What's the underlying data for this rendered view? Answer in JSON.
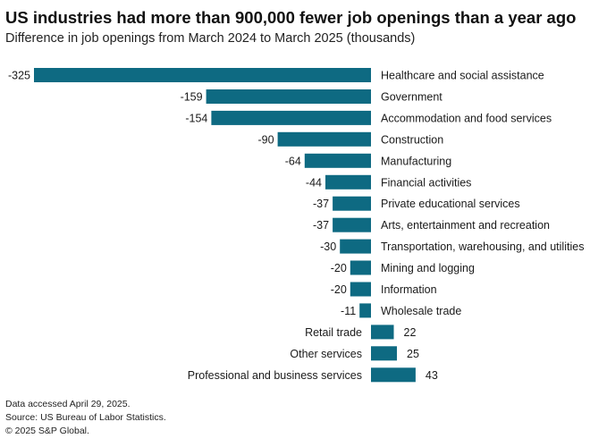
{
  "header": {
    "title": "US industries had more than 900,000 fewer job openings than a year ago",
    "subtitle": "Difference in job openings from March 2024 to March 2025 (thousands)"
  },
  "footer": {
    "line1": "Data accessed April 29, 2025.",
    "line2": "Source: US Bureau of Labor Statistics.",
    "line3": "© 2025 S&P Global."
  },
  "colors": {
    "bar": "#0e6a82"
  },
  "chart_data": {
    "type": "bar",
    "orientation": "horizontal",
    "title": "US industries had more than 900,000 fewer job openings than a year ago",
    "subtitle": "Difference in job openings from March 2024 to March 2025 (thousands)",
    "xlabel": "",
    "ylabel": "",
    "xlim": [
      -325,
      43
    ],
    "grid": false,
    "categories": [
      "Healthcare and social assistance",
      "Government",
      "Accommodation and food services",
      "Construction",
      "Manufacturing",
      "Financial activities",
      "Private educational services",
      "Arts, entertainment and recreation",
      "Transportation, warehousing, and utilities",
      "Mining and logging",
      "Information",
      "Wholesale trade",
      "Retail trade",
      "Other services",
      "Professional and business services"
    ],
    "values": [
      -325,
      -159,
      -154,
      -90,
      -64,
      -44,
      -37,
      -37,
      -30,
      -20,
      -20,
      -11,
      22,
      25,
      43
    ],
    "value_labels": [
      "-325",
      "-159",
      "-154",
      "-90",
      "-64",
      "-44",
      "-37",
      "-37",
      "-30",
      "-20",
      "-20",
      "-11",
      "22",
      "25",
      "43"
    ]
  }
}
